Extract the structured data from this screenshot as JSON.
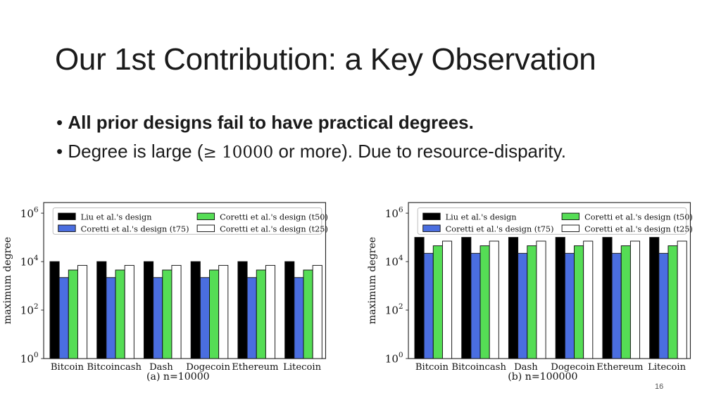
{
  "slide": {
    "title": "Our 1st Contribution: a Key Observation",
    "bullets": [
      {
        "text": "All prior designs fail to have practical degrees.",
        "bold": true
      },
      {
        "prefix": "Degree is large (",
        "math": "≥ 10000",
        "suffix": " or more). Due to resource-disparity."
      }
    ],
    "page_number": "16"
  },
  "chart_data": [
    {
      "type": "bar",
      "caption": "(a) n=10000",
      "ylabel": "maximum degree",
      "yscale": "log",
      "ylim": [
        1,
        1000000
      ],
      "yticks": [
        {
          "label": "10",
          "exp": "0"
        },
        {
          "label": "10",
          "exp": "2"
        },
        {
          "label": "10",
          "exp": "4"
        },
        {
          "label": "10",
          "exp": "6"
        }
      ],
      "legend_position": "top",
      "categories": [
        "Bitcoin",
        "Bitcoincash",
        "Dash",
        "Dogecoin",
        "Ethereum",
        "Litecoin"
      ],
      "series": [
        {
          "name": "Liu et al.'s design",
          "color": "#000000",
          "values": [
            10000,
            10000,
            10000,
            10000,
            10000,
            10000
          ]
        },
        {
          "name": "Coretti et al.'s design (t75)",
          "color": "#4a6ee0",
          "values": [
            2200,
            2200,
            2200,
            2200,
            2200,
            2200
          ]
        },
        {
          "name": "Coretti et al.'s design (t50)",
          "color": "#55dd55",
          "values": [
            4500,
            4500,
            4500,
            4500,
            4500,
            4500
          ]
        },
        {
          "name": "Coretti et al.'s design (t25)",
          "color": "#ffffff",
          "values": [
            7000,
            7000,
            7000,
            7000,
            7000,
            7000
          ]
        }
      ]
    },
    {
      "type": "bar",
      "caption": "(b) n=100000",
      "ylabel": "maximum degree",
      "yscale": "log",
      "ylim": [
        1,
        1000000
      ],
      "yticks": [
        {
          "label": "10",
          "exp": "0"
        },
        {
          "label": "10",
          "exp": "2"
        },
        {
          "label": "10",
          "exp": "4"
        },
        {
          "label": "10",
          "exp": "6"
        }
      ],
      "legend_position": "top",
      "categories": [
        "Bitcoin",
        "Bitcoincash",
        "Dash",
        "Dogecoin",
        "Ethereum",
        "Litecoin"
      ],
      "series": [
        {
          "name": "Liu et al.'s design",
          "color": "#000000",
          "values": [
            100000,
            100000,
            100000,
            100000,
            100000,
            100000
          ]
        },
        {
          "name": "Coretti et al.'s design (t75)",
          "color": "#4a6ee0",
          "values": [
            22000,
            22000,
            22000,
            22000,
            22000,
            22000
          ]
        },
        {
          "name": "Coretti et al.'s design (t50)",
          "color": "#55dd55",
          "values": [
            45000,
            45000,
            45000,
            45000,
            45000,
            45000
          ]
        },
        {
          "name": "Coretti et al.'s design (t25)",
          "color": "#ffffff",
          "values": [
            70000,
            70000,
            70000,
            70000,
            70000,
            70000
          ]
        }
      ]
    }
  ]
}
